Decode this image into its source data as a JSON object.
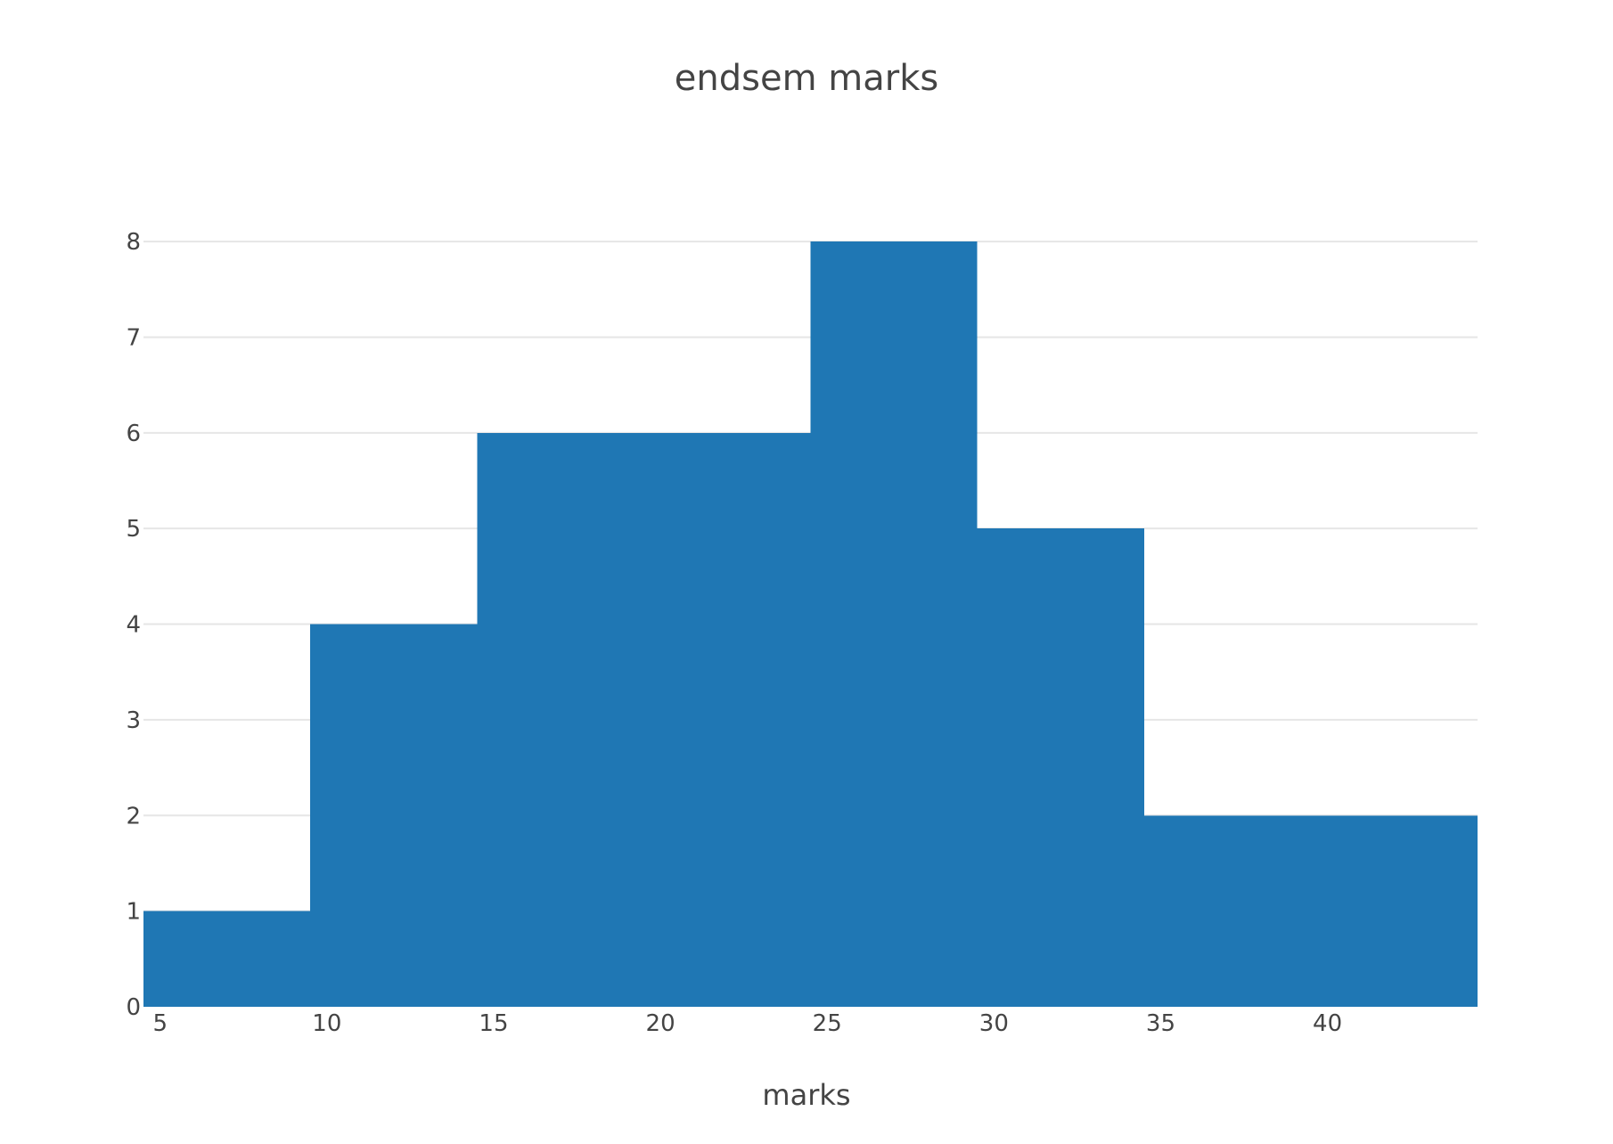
{
  "chart_data": {
    "type": "bar",
    "subtype": "histogram",
    "title": "endsem marks",
    "xlabel": "marks",
    "ylabel": "",
    "bins": [
      {
        "start": 4.5,
        "end": 9.5,
        "count": 1
      },
      {
        "start": 9.5,
        "end": 14.5,
        "count": 4
      },
      {
        "start": 14.5,
        "end": 19.5,
        "count": 6
      },
      {
        "start": 19.5,
        "end": 24.5,
        "count": 6
      },
      {
        "start": 24.5,
        "end": 29.5,
        "count": 8
      },
      {
        "start": 29.5,
        "end": 34.5,
        "count": 5
      },
      {
        "start": 34.5,
        "end": 39.5,
        "count": 2
      },
      {
        "start": 39.5,
        "end": 44.5,
        "count": 2
      }
    ],
    "xlim": [
      4.5,
      44.5
    ],
    "ylim": [
      0,
      8.42
    ],
    "x_ticks": [
      5,
      10,
      15,
      20,
      25,
      30,
      35,
      40
    ],
    "y_ticks": [
      0,
      1,
      2,
      3,
      4,
      5,
      6,
      7,
      8
    ],
    "grid": "horizontal",
    "legend": "none",
    "bar_color": "#1f77b4",
    "grid_color": "#e6e6e6",
    "text_color": "#444444"
  }
}
